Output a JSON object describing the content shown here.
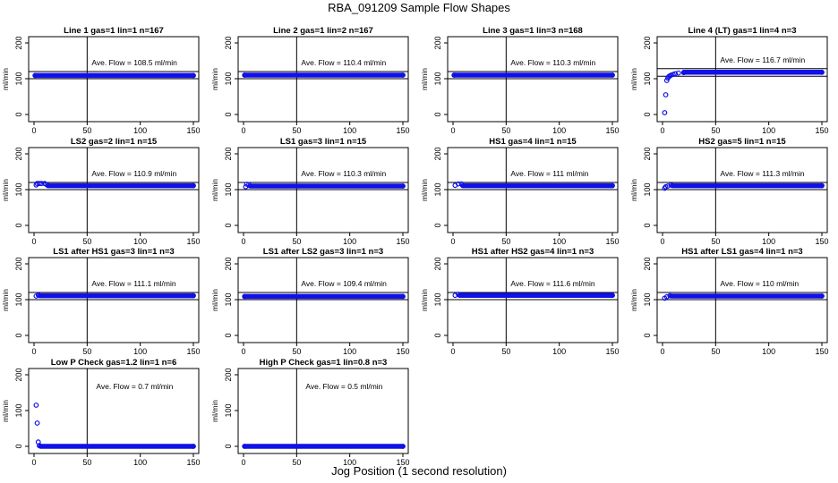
{
  "figure": {
    "title": "RBA_091209  Sample Flow Shapes",
    "xlabel": "Jog Position (1 second resolution)"
  },
  "chart_data": [
    {
      "type": "scatter",
      "title": "Line 1 gas=1 lin=1 n=167",
      "ylabel": "ml/min",
      "xlim": [
        0,
        150
      ],
      "ylim": [
        0,
        200
      ],
      "x_ticks": [
        0,
        50,
        100,
        150
      ],
      "y_ticks": [
        0,
        100,
        200
      ],
      "vline_x": 50,
      "hlines": [
        100,
        120
      ],
      "annotation_label": "Ave. Flow =",
      "annotation_value": "108.5",
      "annotation_unit": "ml/min",
      "points": [
        {
          "x": 1,
          "y": 109
        },
        {
          "x": 150,
          "y": 109
        }
      ],
      "series_x_range": [
        1,
        150
      ],
      "series_y": 109
    },
    {
      "type": "scatter",
      "title": "Line 2 gas=1 lin=2 n=167",
      "ylabel": "ml/min",
      "xlim": [
        0,
        150
      ],
      "ylim": [
        0,
        200
      ],
      "x_ticks": [
        0,
        50,
        100,
        150
      ],
      "y_ticks": [
        0,
        100,
        200
      ],
      "vline_x": 50,
      "hlines": [
        100,
        120
      ],
      "annotation_label": "Ave. Flow =",
      "annotation_value": "110.4",
      "annotation_unit": "ml/min",
      "points": [
        {
          "x": 1,
          "y": 110
        },
        {
          "x": 150,
          "y": 110
        }
      ],
      "series_x_range": [
        1,
        150
      ],
      "series_y": 110
    },
    {
      "type": "scatter",
      "title": "Line 3 gas=1 lin=3 n=168",
      "ylabel": "ml/min",
      "xlim": [
        0,
        150
      ],
      "ylim": [
        0,
        200
      ],
      "x_ticks": [
        0,
        50,
        100,
        150
      ],
      "y_ticks": [
        0,
        100,
        200
      ],
      "vline_x": 50,
      "hlines": [
        100,
        120
      ],
      "annotation_label": "Ave. Flow =",
      "annotation_value": "110.3",
      "annotation_unit": "ml/min",
      "points": [
        {
          "x": 1,
          "y": 110
        },
        {
          "x": 150,
          "y": 110
        }
      ],
      "series_x_range": [
        1,
        150
      ],
      "series_y": 110
    },
    {
      "type": "scatter",
      "title": "Line 4 (LT) gas=1 lin=4 n=3",
      "ylabel": "ml/min",
      "xlim": [
        0,
        150
      ],
      "ylim": [
        0,
        200
      ],
      "x_ticks": [
        0,
        50,
        100,
        150
      ],
      "y_ticks": [
        0,
        100,
        200
      ],
      "vline_x": 50,
      "hlines": [
        107,
        128
      ],
      "annotation_label": "Ave. Flow =",
      "annotation_value": "116.7",
      "annotation_unit": "ml/min",
      "points": [
        {
          "x": 2,
          "y": 5
        },
        {
          "x": 3,
          "y": 55
        },
        {
          "x": 4,
          "y": 95
        },
        {
          "x": 5,
          "y": 102
        },
        {
          "x": 6,
          "y": 106
        },
        {
          "x": 7,
          "y": 108
        },
        {
          "x": 8,
          "y": 110
        },
        {
          "x": 10,
          "y": 112
        },
        {
          "x": 12,
          "y": 114
        },
        {
          "x": 15,
          "y": 116
        },
        {
          "x": 20,
          "y": 117
        },
        {
          "x": 150,
          "y": 118
        }
      ],
      "series_x_range": [
        20,
        150
      ],
      "series_y": 118
    },
    {
      "type": "scatter",
      "title": "LS2 gas=2 lin=1 n=15",
      "ylabel": "ml/min",
      "xlim": [
        0,
        150
      ],
      "ylim": [
        0,
        200
      ],
      "x_ticks": [
        0,
        50,
        100,
        150
      ],
      "y_ticks": [
        0,
        100,
        200
      ],
      "vline_x": 50,
      "hlines": [
        100,
        120
      ],
      "annotation_label": "Ave. Flow =",
      "annotation_value": "110.9",
      "annotation_unit": "ml/min",
      "points": [
        {
          "x": 2,
          "y": 113
        },
        {
          "x": 3,
          "y": 117
        },
        {
          "x": 5,
          "y": 117
        },
        {
          "x": 7,
          "y": 117
        },
        {
          "x": 10,
          "y": 117
        },
        {
          "x": 12,
          "y": 114
        },
        {
          "x": 150,
          "y": 111
        }
      ],
      "series_x_range": [
        13,
        150
      ],
      "series_y": 111
    },
    {
      "type": "scatter",
      "title": "LS1 gas=3 lin=1 n=15",
      "ylabel": "ml/min",
      "xlim": [
        0,
        150
      ],
      "ylim": [
        0,
        200
      ],
      "x_ticks": [
        0,
        50,
        100,
        150
      ],
      "y_ticks": [
        0,
        100,
        200
      ],
      "vline_x": 50,
      "hlines": [
        100,
        120
      ],
      "annotation_label": "Ave. Flow =",
      "annotation_value": "110.3",
      "annotation_unit": "ml/min",
      "points": [
        {
          "x": 2,
          "y": 108
        },
        {
          "x": 3,
          "y": 115
        },
        {
          "x": 5,
          "y": 114
        },
        {
          "x": 150,
          "y": 110
        }
      ],
      "series_x_range": [
        6,
        150
      ],
      "series_y": 110
    },
    {
      "type": "scatter",
      "title": "HS1 gas=4 lin=1 n=15",
      "ylabel": "ml/min",
      "xlim": [
        0,
        150
      ],
      "ylim": [
        0,
        200
      ],
      "x_ticks": [
        0,
        50,
        100,
        150
      ],
      "y_ticks": [
        0,
        100,
        200
      ],
      "vline_x": 50,
      "hlines": [
        100,
        120
      ],
      "annotation_label": "Ave. Flow =",
      "annotation_value": "111",
      "annotation_unit": "ml/min",
      "points": [
        {
          "x": 2,
          "y": 112
        },
        {
          "x": 5,
          "y": 116
        },
        {
          "x": 8,
          "y": 116
        },
        {
          "x": 150,
          "y": 111
        }
      ],
      "series_x_range": [
        9,
        150
      ],
      "series_y": 111
    },
    {
      "type": "scatter",
      "title": "HS2 gas=5 lin=1 n=15",
      "ylabel": "ml/min",
      "xlim": [
        0,
        150
      ],
      "ylim": [
        0,
        200
      ],
      "x_ticks": [
        0,
        50,
        100,
        150
      ],
      "y_ticks": [
        0,
        100,
        200
      ],
      "vline_x": 50,
      "hlines": [
        100,
        120
      ],
      "annotation_label": "Ave. Flow =",
      "annotation_value": "111.3",
      "annotation_unit": "ml/min",
      "points": [
        {
          "x": 2,
          "y": 104
        },
        {
          "x": 3,
          "y": 108
        },
        {
          "x": 5,
          "y": 110
        },
        {
          "x": 8,
          "y": 113
        },
        {
          "x": 150,
          "y": 111
        }
      ],
      "series_x_range": [
        9,
        150
      ],
      "series_y": 111
    },
    {
      "type": "scatter",
      "title": "LS1 after HS1 gas=3 lin=1 n=3",
      "ylabel": "ml/min",
      "xlim": [
        0,
        150
      ],
      "ylim": [
        0,
        200
      ],
      "x_ticks": [
        0,
        50,
        100,
        150
      ],
      "y_ticks": [
        0,
        100,
        200
      ],
      "vline_x": 50,
      "hlines": [
        100,
        120
      ],
      "annotation_label": "Ave. Flow =",
      "annotation_value": "111.1",
      "annotation_unit": "ml/min",
      "points": [
        {
          "x": 2,
          "y": 110
        },
        {
          "x": 4,
          "y": 113
        },
        {
          "x": 150,
          "y": 111
        }
      ],
      "series_x_range": [
        5,
        150
      ],
      "series_y": 111
    },
    {
      "type": "scatter",
      "title": "LS1 after LS2 gas=3 lin=1 n=3",
      "ylabel": "ml/min",
      "xlim": [
        0,
        150
      ],
      "ylim": [
        0,
        200
      ],
      "x_ticks": [
        0,
        50,
        100,
        150
      ],
      "y_ticks": [
        0,
        100,
        200
      ],
      "vline_x": 50,
      "hlines": [
        100,
        120
      ],
      "annotation_label": "Ave. Flow =",
      "annotation_value": "109.4",
      "annotation_unit": "ml/min",
      "points": [
        {
          "x": 1,
          "y": 109
        },
        {
          "x": 150,
          "y": 109
        }
      ],
      "series_x_range": [
        1,
        150
      ],
      "series_y": 109
    },
    {
      "type": "scatter",
      "title": "HS1 after HS2 gas=4 lin=1 n=3",
      "ylabel": "ml/min",
      "xlim": [
        0,
        150
      ],
      "ylim": [
        0,
        200
      ],
      "x_ticks": [
        0,
        50,
        100,
        150
      ],
      "y_ticks": [
        0,
        100,
        200
      ],
      "vline_x": 50,
      "hlines": [
        100,
        120
      ],
      "annotation_label": "Ave. Flow =",
      "annotation_value": "111.6",
      "annotation_unit": "ml/min",
      "points": [
        {
          "x": 2,
          "y": 112
        },
        {
          "x": 5,
          "y": 115
        },
        {
          "x": 150,
          "y": 112
        }
      ],
      "series_x_range": [
        6,
        150
      ],
      "series_y": 112
    },
    {
      "type": "scatter",
      "title": "HS1 after LS1 gas=4 lin=1 n=3",
      "ylabel": "ml/min",
      "xlim": [
        0,
        150
      ],
      "ylim": [
        0,
        200
      ],
      "x_ticks": [
        0,
        50,
        100,
        150
      ],
      "y_ticks": [
        0,
        100,
        200
      ],
      "vline_x": 50,
      "hlines": [
        100,
        120
      ],
      "annotation_label": "Ave. Flow =",
      "annotation_value": "110",
      "annotation_unit": "ml/min",
      "points": [
        {
          "x": 2,
          "y": 104
        },
        {
          "x": 4,
          "y": 108
        },
        {
          "x": 7,
          "y": 111
        },
        {
          "x": 150,
          "y": 110
        }
      ],
      "series_x_range": [
        8,
        150
      ],
      "series_y": 110
    },
    {
      "type": "scatter",
      "title": "Low P Check gas=1.2 lin=1 n=6",
      "ylabel": "ml/min",
      "xlim": [
        0,
        150
      ],
      "ylim": [
        0,
        200
      ],
      "x_ticks": [
        0,
        50,
        100,
        150
      ],
      "y_ticks": [
        0,
        100,
        200
      ],
      "vline_x": 50,
      "hlines": [],
      "annotation_label": "Ave. Flow =",
      "annotation_value": "0.7",
      "annotation_unit": "ml/min",
      "points": [
        {
          "x": 2,
          "y": 115
        },
        {
          "x": 3,
          "y": 65
        },
        {
          "x": 4,
          "y": 12
        },
        {
          "x": 5,
          "y": 2
        },
        {
          "x": 150,
          "y": 0
        }
      ],
      "series_x_range": [
        6,
        150
      ],
      "series_y": 0
    },
    {
      "type": "scatter",
      "title": "High P Check gas=1 lin=0.8 n=3",
      "ylabel": "ml/min",
      "xlim": [
        0,
        150
      ],
      "ylim": [
        0,
        200
      ],
      "x_ticks": [
        0,
        50,
        100,
        150
      ],
      "y_ticks": [
        0,
        100,
        200
      ],
      "vline_x": 50,
      "hlines": [],
      "annotation_label": "Ave. Flow =",
      "annotation_value": "0.5",
      "annotation_unit": "ml/min",
      "points": [
        {
          "x": 1,
          "y": 0
        },
        {
          "x": 150,
          "y": 0
        }
      ],
      "series_x_range": [
        1,
        150
      ],
      "series_y": 0
    }
  ]
}
